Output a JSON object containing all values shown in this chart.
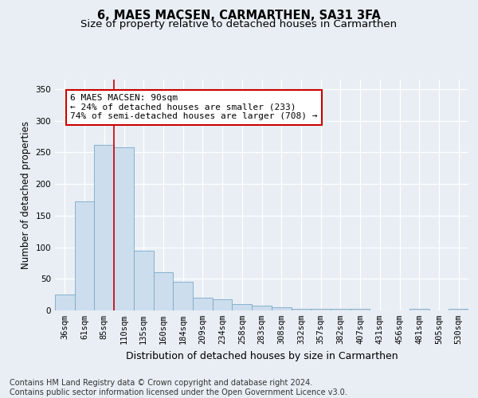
{
  "title_line1": "6, MAES MACSEN, CARMARTHEN, SA31 3FA",
  "title_line2": "Size of property relative to detached houses in Carmarthen",
  "xlabel": "Distribution of detached houses by size in Carmarthen",
  "ylabel": "Number of detached properties",
  "categories": [
    "36sqm",
    "61sqm",
    "85sqm",
    "110sqm",
    "135sqm",
    "160sqm",
    "184sqm",
    "209sqm",
    "234sqm",
    "258sqm",
    "283sqm",
    "308sqm",
    "332sqm",
    "357sqm",
    "382sqm",
    "407sqm",
    "431sqm",
    "456sqm",
    "481sqm",
    "505sqm",
    "530sqm"
  ],
  "bar_values": [
    25,
    172,
    262,
    258,
    95,
    60,
    45,
    20,
    17,
    10,
    8,
    5,
    3,
    3,
    2,
    3,
    0,
    0,
    3,
    0,
    3
  ],
  "bar_color": "#ccdded",
  "bar_edge_color": "#7aaac8",
  "vline_color": "#cc0000",
  "annotation_text": "6 MAES MACSEN: 90sqm\n← 24% of detached houses are smaller (233)\n74% of semi-detached houses are larger (708) →",
  "annotation_box_facecolor": "#ffffff",
  "annotation_box_edgecolor": "#cc0000",
  "ylim": [
    0,
    365
  ],
  "yticks": [
    0,
    50,
    100,
    150,
    200,
    250,
    300,
    350
  ],
  "footer_text": "Contains HM Land Registry data © Crown copyright and database right 2024.\nContains public sector information licensed under the Open Government Licence v3.0.",
  "bg_color": "#e8eef4",
  "plot_bg_color": "#e8eef4",
  "grid_color": "#ffffff",
  "title_fontsize": 10.5,
  "subtitle_fontsize": 9.5,
  "axis_label_fontsize": 8.5,
  "tick_fontsize": 7.5,
  "annotation_fontsize": 8,
  "footer_fontsize": 7
}
